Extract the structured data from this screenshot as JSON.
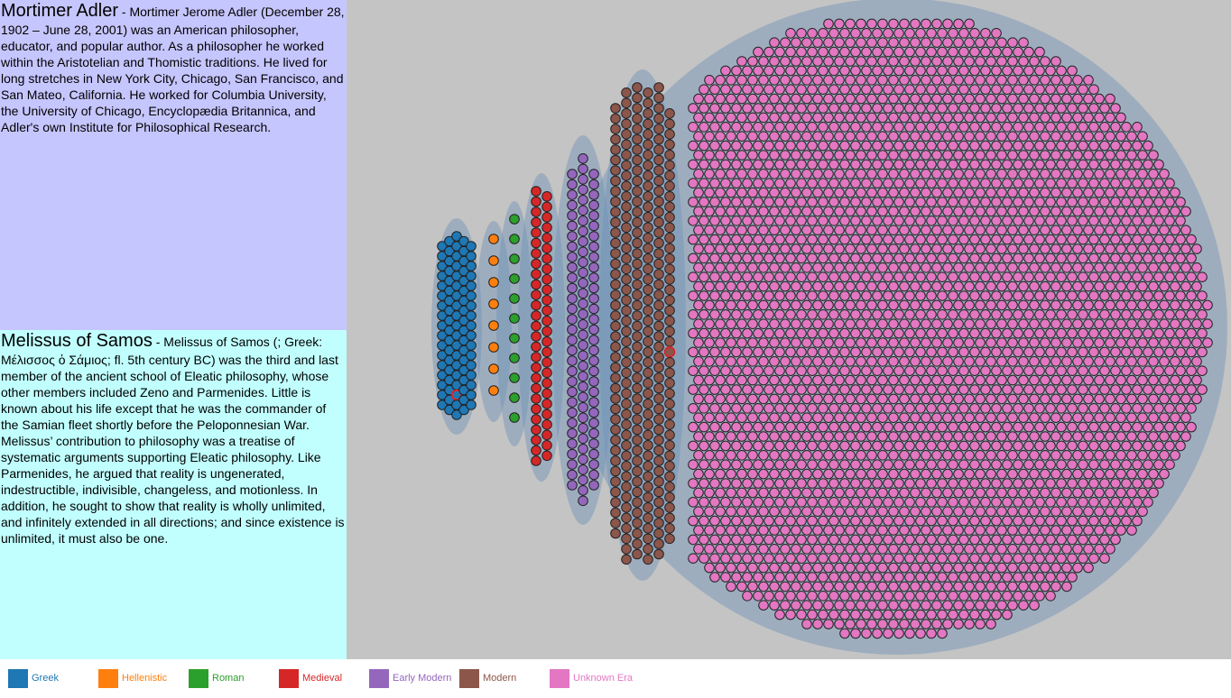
{
  "panels": [
    {
      "title": "Mortimer Adler",
      "separator": " - ",
      "body": "Mortimer Jerome Adler (December 28, 1902 – June 28, 2001) was an American philosopher, educator, and popular author. As a philosopher he worked within the Aristotelian and Thomistic traditions. He lived for long stretches in New York City, Chicago, San Francisco, and San Mateo, California. He worked for Columbia University, the University of Chicago, Encyclopædia Britannica, and Adler's own Institute for Philosophical Research."
    },
    {
      "title": "Melissus of Samos",
      "separator": " - ",
      "body": "Melissus of Samos (; Greek: Μέλισσος ὁ Σάμιος; fl. 5th century BC) was the third and last member of the ancient school of Eleatic philosophy, whose other members included Zeno and Parmenides. Little is known about his life except that he was the commander of the Samian fleet shortly before the Peloponnesian War. Melissus’ contribution to philosophy was a treatise of systematic arguments supporting Eleatic philosophy. Like Parmenides, he argued that reality is ungenerated, indestructible, indivisible, changeless, and motionless. In addition, he sought to show that reality is wholly unlimited, and infinitely extended in all directions; and since existence is unlimited, it must also be one."
    }
  ],
  "legend": [
    {
      "label": "Greek",
      "color": "#1f77b4"
    },
    {
      "label": "Hellenistic",
      "color": "#ff7f0e"
    },
    {
      "label": "Roman",
      "color": "#2ca02c"
    },
    {
      "label": "Medieval",
      "color": "#d62728"
    },
    {
      "label": "Early Modern",
      "color": "#9467bd"
    },
    {
      "label": "Modern",
      "color": "#8c564b"
    },
    {
      "label": "Unknown Era",
      "color": "#e377c2"
    }
  ],
  "clusters": [
    {
      "era": "Greek",
      "color": "#1f77b4",
      "highlighted": 1
    },
    {
      "era": "Hellenistic",
      "color": "#ff7f0e",
      "highlighted": 0
    },
    {
      "era": "Roman",
      "color": "#2ca02c",
      "highlighted": 0
    },
    {
      "era": "Medieval",
      "color": "#d62728",
      "highlighted": 0
    },
    {
      "era": "Early Modern",
      "color": "#9467bd",
      "highlighted": 0
    },
    {
      "era": "Modern",
      "color": "#8c564b",
      "highlighted": 1
    },
    {
      "era": "Unknown Era",
      "color": "#e377c2",
      "highlighted": 0
    }
  ],
  "highlight_color": "#d62728",
  "hull_color": "#6f93b8"
}
